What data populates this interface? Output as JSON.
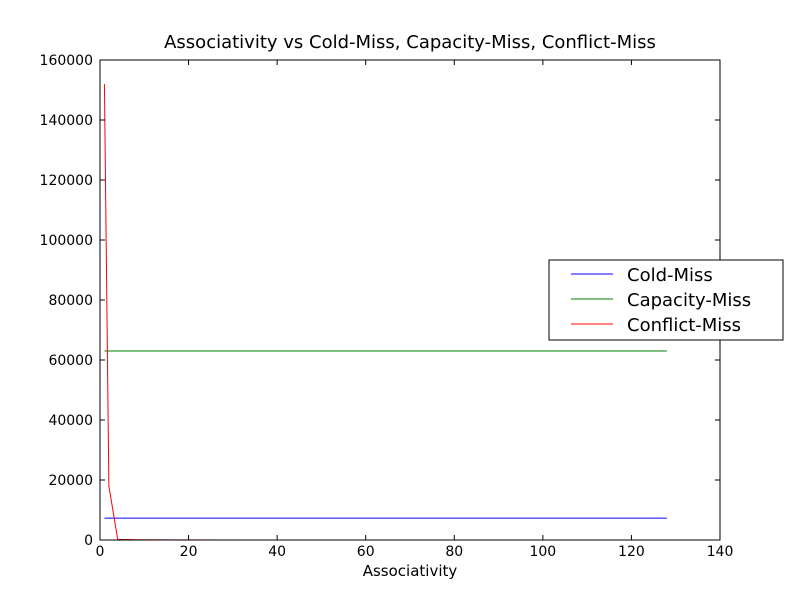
{
  "chart_data": {
    "type": "line",
    "title": "Associativity vs Cold-Miss, Capacity-Miss, Conflict-Miss",
    "xlabel": "Associativity",
    "ylabel": "",
    "xlim": [
      0,
      140
    ],
    "ylim": [
      0,
      160000
    ],
    "x_ticks": [
      0,
      20,
      40,
      60,
      80,
      100,
      120,
      140
    ],
    "y_ticks": [
      0,
      20000,
      40000,
      60000,
      80000,
      100000,
      120000,
      140000,
      160000
    ],
    "grid": false,
    "legend_position": "center-right",
    "x": [
      1,
      2,
      4,
      8,
      16,
      32,
      64,
      128
    ],
    "series": [
      {
        "name": "Cold-Miss",
        "color": "#0000ff",
        "values": [
          7300,
          7300,
          7300,
          7300,
          7300,
          7300,
          7300,
          7300
        ]
      },
      {
        "name": "Capacity-Miss",
        "color": "#008000",
        "values": [
          63000,
          63000,
          63000,
          63000,
          63000,
          63000,
          63000,
          63000
        ]
      },
      {
        "name": "Conflict-Miss",
        "color": "#ff0000",
        "values": [
          152000,
          18000,
          200,
          100,
          50,
          20,
          10,
          0
        ]
      }
    ]
  }
}
